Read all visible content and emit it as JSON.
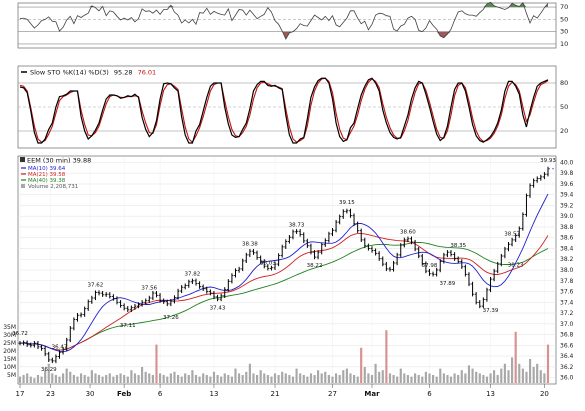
{
  "chart_data": {
    "type": "line",
    "panels": {
      "rsi": {
        "ticks": [
          "70",
          "50",
          "30",
          "10"
        ],
        "ylim": [
          5,
          75
        ],
        "values": [
          51,
          52,
          50,
          43,
          36,
          41,
          48,
          50,
          54,
          47,
          46,
          31,
          37,
          49,
          55,
          43,
          56,
          53,
          57,
          60,
          72,
          69,
          64,
          71,
          56,
          64,
          62,
          55,
          49,
          52,
          49,
          53,
          46,
          51,
          67,
          63,
          64,
          60,
          65,
          58,
          66,
          66,
          73,
          62,
          57,
          44,
          49,
          44,
          50,
          42,
          61,
          60,
          68,
          58,
          63,
          60,
          58,
          57,
          67,
          48,
          57,
          66,
          65,
          57,
          65,
          58,
          51,
          55,
          58,
          69,
          62,
          48,
          42,
          31,
          18,
          28,
          30,
          35,
          43,
          40,
          39,
          48,
          57,
          53,
          49,
          55,
          48,
          56,
          41,
          38,
          45,
          52,
          64,
          64,
          52,
          43,
          47,
          33,
          42,
          57,
          60,
          59,
          56,
          55,
          34,
          31,
          39,
          42,
          52,
          55,
          50,
          32,
          30,
          36,
          48,
          40,
          34,
          23,
          20,
          26,
          34,
          49,
          62,
          64,
          59,
          57,
          57,
          55,
          61,
          66,
          75,
          78,
          72,
          70,
          68,
          66,
          69,
          76,
          73,
          71,
          77,
          60,
          44,
          56,
          52,
          60,
          69,
          76
        ]
      },
      "stoch": {
        "label": "Slow STO %K(14) %D(3)",
        "k_value": "95.28",
        "d_value": "76.01",
        "ticks": [
          "80",
          "50",
          "20"
        ],
        "ylim": [
          0,
          100
        ],
        "k": [
          75,
          74,
          68,
          45,
          18,
          5,
          5,
          10,
          22,
          30,
          50,
          63,
          64,
          66,
          70,
          70,
          70,
          38,
          20,
          10,
          14,
          21,
          30,
          46,
          60,
          65,
          65,
          64,
          61,
          62,
          64,
          63,
          66,
          62,
          37,
          22,
          13,
          18,
          33,
          60,
          79,
          80,
          79,
          74,
          70,
          38,
          15,
          5,
          5,
          20,
          28,
          45,
          62,
          76,
          80,
          80,
          80,
          50,
          29,
          15,
          12,
          13,
          22,
          30,
          48,
          70,
          78,
          82,
          82,
          77,
          76,
          77,
          74,
          72,
          40,
          15,
          5,
          5,
          10,
          12,
          35,
          62,
          75,
          83,
          86,
          86,
          80,
          60,
          30,
          13,
          7,
          9,
          24,
          30,
          48,
          65,
          76,
          84,
          86,
          80,
          70,
          46,
          30,
          18,
          12,
          10,
          12,
          26,
          40,
          60,
          74,
          82,
          80,
          66,
          50,
          32,
          16,
          8,
          12,
          26,
          50,
          72,
          80,
          80,
          70,
          50,
          28,
          14,
          8,
          6,
          9,
          13,
          20,
          30,
          46,
          70,
          82,
          82,
          76,
          66,
          40,
          25,
          45,
          62,
          76,
          80,
          82,
          84
        ],
        "d": [
          77,
          76,
          70,
          49,
          26,
          10,
          6,
          8,
          16,
          26,
          42,
          58,
          63,
          65,
          68,
          70,
          70,
          46,
          28,
          15,
          14,
          18,
          26,
          40,
          54,
          63,
          65,
          64,
          62,
          62,
          63,
          63,
          64,
          63,
          45,
          30,
          18,
          17,
          28,
          52,
          71,
          78,
          79,
          76,
          72,
          48,
          25,
          10,
          6,
          14,
          24,
          38,
          54,
          70,
          78,
          80,
          80,
          58,
          38,
          22,
          14,
          13,
          18,
          26,
          40,
          60,
          74,
          80,
          81,
          79,
          77,
          76,
          75,
          73,
          48,
          25,
          10,
          6,
          8,
          11,
          26,
          52,
          70,
          80,
          85,
          86,
          82,
          68,
          42,
          22,
          11,
          9,
          18,
          26,
          40,
          58,
          72,
          81,
          85,
          82,
          74,
          54,
          37,
          24,
          15,
          11,
          11,
          20,
          33,
          52,
          68,
          79,
          80,
          71,
          56,
          39,
          22,
          12,
          11,
          20,
          40,
          64,
          77,
          80,
          74,
          57,
          36,
          20,
          11,
          7,
          8,
          11,
          17,
          26,
          40,
          61,
          76,
          81,
          78,
          70,
          50,
          32,
          40,
          56,
          70,
          78,
          80,
          83
        ]
      },
      "price": {
        "label": "EEM (30 min) 39.88",
        "ma1_label": "MA(10) 39.64",
        "ma2_label": "MA(21) 39.58",
        "ma3_label": "MA(40) 39.38",
        "volume_label": "Volume 2,208,731",
        "last_label": "39.93",
        "ylim": [
          35.9,
          40.1
        ],
        "y_ticks": [
          "40.0",
          "39.8",
          "39.6",
          "39.4",
          "39.2",
          "39.0",
          "38.8",
          "38.6",
          "38.4",
          "38.2",
          "38.0",
          "37.8",
          "37.6",
          "37.4",
          "37.2",
          "37.0",
          "36.8",
          "36.6",
          "36.4",
          "36.2",
          "36.0"
        ],
        "vol_ticks": [
          "35M",
          "30M",
          "25M",
          "20M",
          "15M",
          "10M",
          "5M"
        ],
        "x_ticks": [
          "17",
          "23",
          "30",
          "Feb",
          "6",
          "13",
          "21",
          "27",
          "Mar",
          "6",
          "13",
          "20"
        ],
        "close": [
          36.64,
          36.65,
          36.61,
          36.6,
          36.64,
          36.57,
          36.54,
          36.44,
          36.33,
          36.31,
          36.39,
          36.47,
          36.53,
          36.7,
          36.92,
          37.08,
          37.16,
          37.17,
          37.28,
          37.41,
          37.48,
          37.58,
          37.57,
          37.54,
          37.55,
          37.51,
          37.47,
          37.4,
          37.34,
          37.29,
          37.26,
          37.3,
          37.33,
          37.36,
          37.4,
          37.43,
          37.48,
          37.57,
          37.53,
          37.43,
          37.41,
          37.37,
          37.42,
          37.49,
          37.61,
          37.68,
          37.71,
          37.78,
          37.8,
          37.75,
          37.69,
          37.65,
          37.6,
          37.57,
          37.5,
          37.46,
          37.52,
          37.64,
          37.79,
          37.9,
          37.99,
          38.02,
          38.17,
          38.28,
          38.35,
          38.32,
          38.23,
          38.16,
          38.07,
          38.03,
          38.04,
          38.11,
          38.27,
          38.43,
          38.53,
          38.61,
          38.71,
          38.72,
          38.66,
          38.54,
          38.45,
          38.33,
          38.24,
          38.33,
          38.47,
          38.55,
          38.67,
          38.74,
          38.89,
          38.99,
          39.09,
          39.1,
          39.01,
          38.86,
          38.73,
          38.56,
          38.45,
          38.4,
          38.36,
          38.31,
          38.21,
          38.11,
          38.02,
          38.01,
          38.13,
          38.28,
          38.46,
          38.56,
          38.58,
          38.52,
          38.39,
          38.26,
          38.12,
          37.98,
          37.93,
          37.92,
          38.0,
          38.16,
          38.28,
          38.33,
          38.29,
          38.21,
          38.16,
          38.06,
          37.92,
          37.74,
          37.55,
          37.4,
          37.33,
          37.45,
          37.63,
          37.83,
          37.98,
          38.11,
          38.26,
          38.39,
          38.48,
          38.56,
          38.64,
          38.77,
          39.03,
          39.38,
          39.57,
          39.66,
          39.7,
          39.73,
          39.78,
          39.88
        ],
        "volume": [
          4,
          5,
          6,
          4,
          3,
          5,
          4,
          8,
          12,
          6,
          5,
          4,
          6,
          9,
          7,
          5,
          4,
          6,
          5,
          4,
          8,
          6,
          5,
          4,
          5,
          6,
          4,
          5,
          6,
          5,
          4,
          8,
          6,
          5,
          10,
          7,
          6,
          5,
          24,
          6,
          5,
          4,
          6,
          7,
          5,
          4,
          6,
          5,
          8,
          5,
          4,
          6,
          5,
          4,
          7,
          5,
          4,
          6,
          5,
          4,
          9,
          6,
          5,
          7,
          12,
          6,
          5,
          8,
          6,
          5,
          4,
          6,
          5,
          7,
          6,
          5,
          4,
          9,
          6,
          5,
          4,
          6,
          5,
          8,
          6,
          7,
          5,
          4,
          6,
          5,
          8,
          9,
          6,
          5,
          4,
          22,
          10,
          6,
          5,
          12,
          7,
          8,
          33,
          6,
          5,
          4,
          9,
          6,
          5,
          4,
          6,
          5,
          4,
          7,
          6,
          5,
          4,
          9,
          6,
          5,
          4,
          6,
          5,
          8,
          6,
          11,
          9,
          7,
          6,
          5,
          4,
          6,
          8,
          5,
          9,
          12,
          8,
          16,
          32,
          12,
          9,
          7,
          15,
          10,
          12,
          8,
          6,
          24
        ]
      },
      "annotations": [
        {
          "i": 0,
          "label": "36.72"
        },
        {
          "i": 8,
          "label": "36.29"
        },
        {
          "i": 11,
          "label": "36.47"
        },
        {
          "i": 21,
          "label": "37.62"
        },
        {
          "i": 30,
          "label": "37.11"
        },
        {
          "i": 36,
          "label": "37.56"
        },
        {
          "i": 42,
          "label": "37.26"
        },
        {
          "i": 48,
          "label": "37.82"
        },
        {
          "i": 55,
          "label": "37.43"
        },
        {
          "i": 64,
          "label": "38.38"
        },
        {
          "i": 69,
          "label": "38.03"
        },
        {
          "i": 77,
          "label": "38.73"
        },
        {
          "i": 82,
          "label": "38.22"
        },
        {
          "i": 91,
          "label": "39.15"
        },
        {
          "i": 108,
          "label": "38.60"
        },
        {
          "i": 114,
          "label": "37.98"
        },
        {
          "i": 119,
          "label": "37.89"
        },
        {
          "i": 122,
          "label": "38.35"
        },
        {
          "i": 131,
          "label": "37.39"
        },
        {
          "i": 137,
          "label": "38.57"
        },
        {
          "i": 138,
          "label": "38.23"
        },
        {
          "i": 147,
          "label": "39.93"
        }
      ]
    }
  },
  "colors": {
    "rsi_line": "#404040",
    "rsi_fill_high": "#5a8a50",
    "rsi_fill_low": "#9a5a5a",
    "stoch_k": "#000000",
    "stoch_d": "#c01010",
    "price_bar": "#000000",
    "ma1": "#2020d0",
    "ma2": "#d02020",
    "ma3": "#208020",
    "volume": "#a8a8a8",
    "volume_hi": "#d89090"
  }
}
